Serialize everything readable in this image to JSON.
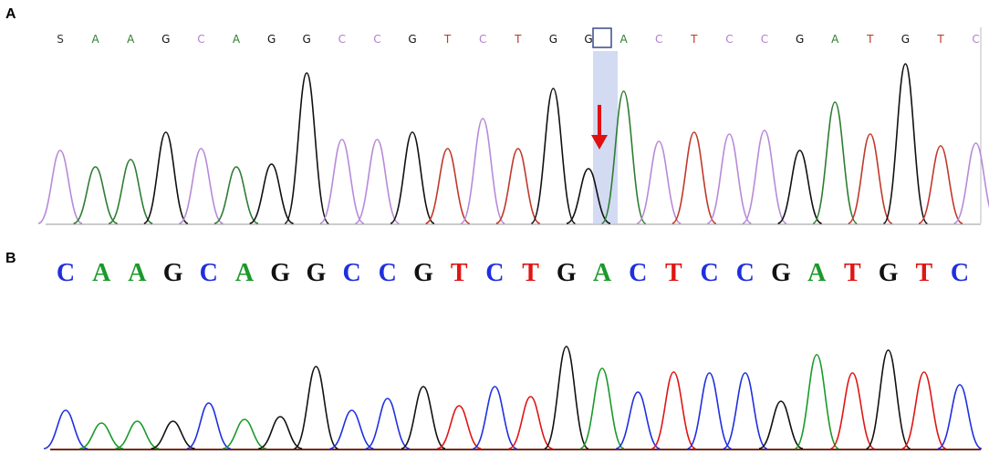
{
  "panel_a": {
    "label": "A",
    "bases": [
      "S",
      "A",
      "A",
      "G",
      "C",
      "A",
      "G",
      "G",
      "C",
      "C",
      "G",
      "T",
      "C",
      "T",
      "G",
      "G",
      "A",
      "C",
      "T",
      "C",
      "C",
      "G",
      "A",
      "T",
      "G",
      "T",
      "C"
    ]
  },
  "panel_b": {
    "label": "B",
    "bases": [
      "C",
      "A",
      "A",
      "G",
      "C",
      "A",
      "G",
      "G",
      "C",
      "C",
      "G",
      "T",
      "C",
      "T",
      "G",
      "A",
      "C",
      "T",
      "C",
      "C",
      "G",
      "A",
      "T",
      "G",
      "T",
      "C"
    ]
  }
}
